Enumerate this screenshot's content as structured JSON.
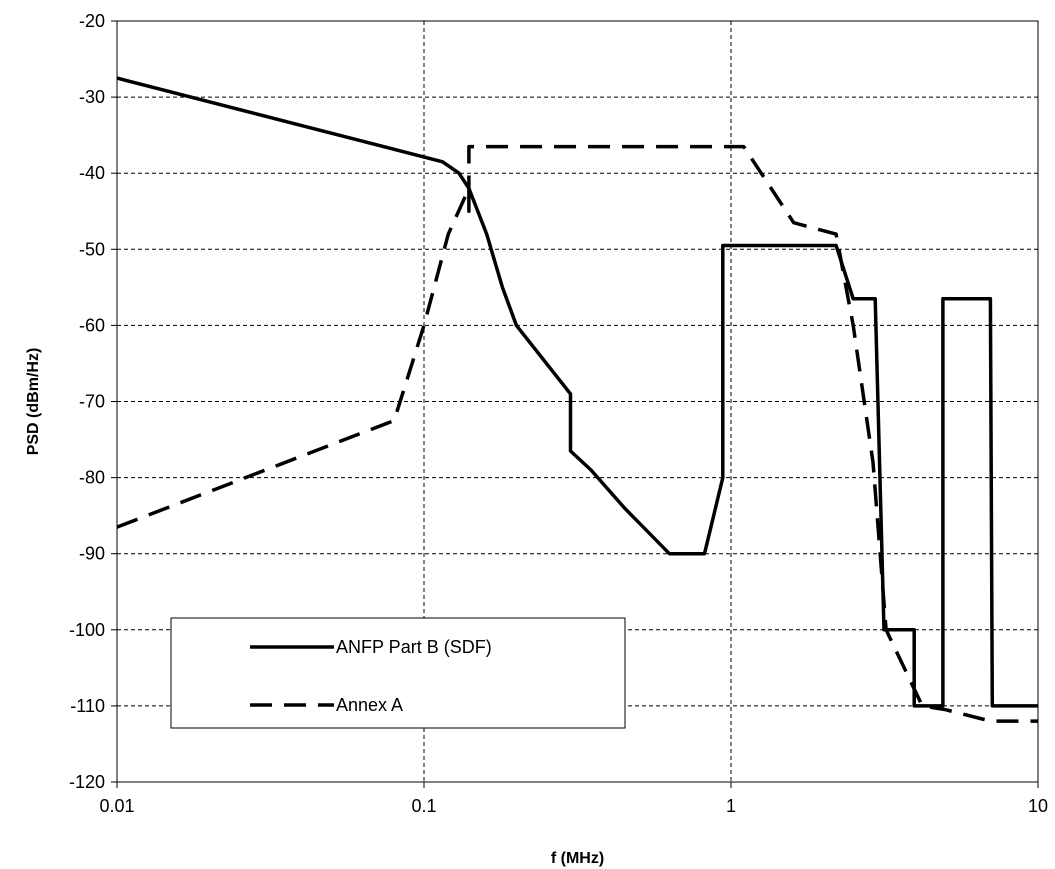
{
  "chart_data": {
    "type": "line",
    "title": "",
    "xlabel": "f (MHz)",
    "ylabel": "PSD (dBm/Hz)",
    "x_scale": "log",
    "xlim": [
      0.01,
      10
    ],
    "ylim": [
      -120,
      -20
    ],
    "x_ticks": [
      0.01,
      0.1,
      1,
      10
    ],
    "x_tick_labels": [
      "0.01",
      "0.1",
      "1",
      "10"
    ],
    "y_ticks": [
      -120,
      -110,
      -100,
      -90,
      -80,
      -70,
      -60,
      -50,
      -40,
      -30,
      -20
    ],
    "y_tick_labels": [
      "-120",
      "-110",
      "-100",
      "-90",
      "-80",
      "-70",
      "-60",
      "-50",
      "-40",
      "-30",
      "-20"
    ],
    "grid": true,
    "legend": "bottom-left",
    "series": [
      {
        "name": "ANFP Part B (SDF)",
        "style": "solid",
        "color": "#000000",
        "points": [
          [
            0.01,
            -27.5
          ],
          [
            0.115,
            -38.5
          ],
          [
            0.13,
            -40
          ],
          [
            0.14,
            -42
          ],
          [
            0.16,
            -48
          ],
          [
            0.18,
            -55
          ],
          [
            0.2,
            -60
          ],
          [
            0.3,
            -69
          ],
          [
            0.3,
            -76.5
          ],
          [
            0.35,
            -79
          ],
          [
            0.45,
            -84
          ],
          [
            0.63,
            -90
          ],
          [
            0.82,
            -90
          ],
          [
            0.94,
            -80
          ],
          [
            0.94,
            -49.5
          ],
          [
            2.2,
            -49.5
          ],
          [
            2.5,
            -56.5
          ],
          [
            2.95,
            -56.5
          ],
          [
            3.15,
            -100
          ],
          [
            3.95,
            -100
          ],
          [
            3.95,
            -110
          ],
          [
            4.9,
            -110
          ],
          [
            4.9,
            -56.5
          ],
          [
            7.0,
            -56.5
          ],
          [
            7.1,
            -110
          ],
          [
            10,
            -110
          ]
        ]
      },
      {
        "name": "Annex A",
        "style": "dashed",
        "color": "#000000",
        "points": [
          [
            0.01,
            -86.5
          ],
          [
            0.08,
            -72.5
          ],
          [
            0.1,
            -60
          ],
          [
            0.12,
            -48
          ],
          [
            0.14,
            -42
          ],
          [
            0.14,
            -45
          ],
          [
            0.14,
            -36.5
          ],
          [
            1.1,
            -36.5
          ],
          [
            1.6,
            -46.5
          ],
          [
            2.2,
            -48
          ],
          [
            2.5,
            -60
          ],
          [
            2.9,
            -78
          ],
          [
            3.2,
            -100
          ],
          [
            4.2,
            -110
          ],
          [
            5.0,
            -110.5
          ],
          [
            7.0,
            -112
          ],
          [
            10,
            -112
          ]
        ]
      }
    ]
  }
}
